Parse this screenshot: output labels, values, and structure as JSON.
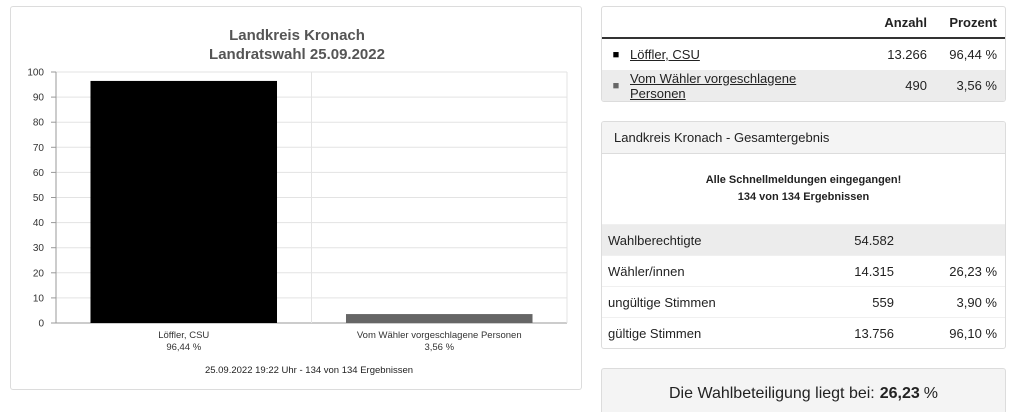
{
  "chart_data": {
    "type": "bar",
    "title": "Landkreis Kronach",
    "subtitle": "Landratswahl 25.09.2022",
    "categories": [
      "Löffler, CSU",
      "Vom Wähler vorgeschlagene Personen"
    ],
    "category_sublabels": [
      "96,44 %",
      "3,56 %"
    ],
    "values": [
      96.44,
      3.56
    ],
    "colors": [
      "#000000",
      "#666666"
    ],
    "ylim": [
      0,
      100
    ],
    "yticks": [
      0,
      10,
      20,
      30,
      40,
      50,
      60,
      70,
      80,
      90,
      100
    ],
    "xlabel": "",
    "ylabel": "",
    "grid": true,
    "footer": "25.09.2022 19:22 Uhr - 134 von 134 Ergebnissen"
  },
  "results_table": {
    "headers": {
      "count": "Anzahl",
      "percent": "Prozent"
    },
    "rows": [
      {
        "marker": "■",
        "name": "Löffler, CSU",
        "count": "13.266",
        "percent": "96,44 %"
      },
      {
        "marker": "■",
        "name": "Vom Wähler vorgeschlagene Personen",
        "count": "490",
        "percent": "3,56 %"
      }
    ]
  },
  "overall": {
    "title": "Landkreis Kronach - Gesamtergebnis",
    "status_line1": "Alle Schnellmeldungen eingegangen!",
    "status_line2": "134 von 134 Ergebnissen",
    "stats": [
      {
        "label": "Wahlberechtigte",
        "value": "54.582",
        "percent": ""
      },
      {
        "label": "Wähler/innen",
        "value": "14.315",
        "percent": "26,23 %"
      },
      {
        "label": "ungültige Stimmen",
        "value": "559",
        "percent": "3,90 %"
      },
      {
        "label": "gültige Stimmen",
        "value": "13.756",
        "percent": "96,10 %"
      }
    ]
  },
  "turnout": {
    "text": "Die Wahlbeteiligung liegt bei:",
    "value": "26,23",
    "unit": "%"
  }
}
